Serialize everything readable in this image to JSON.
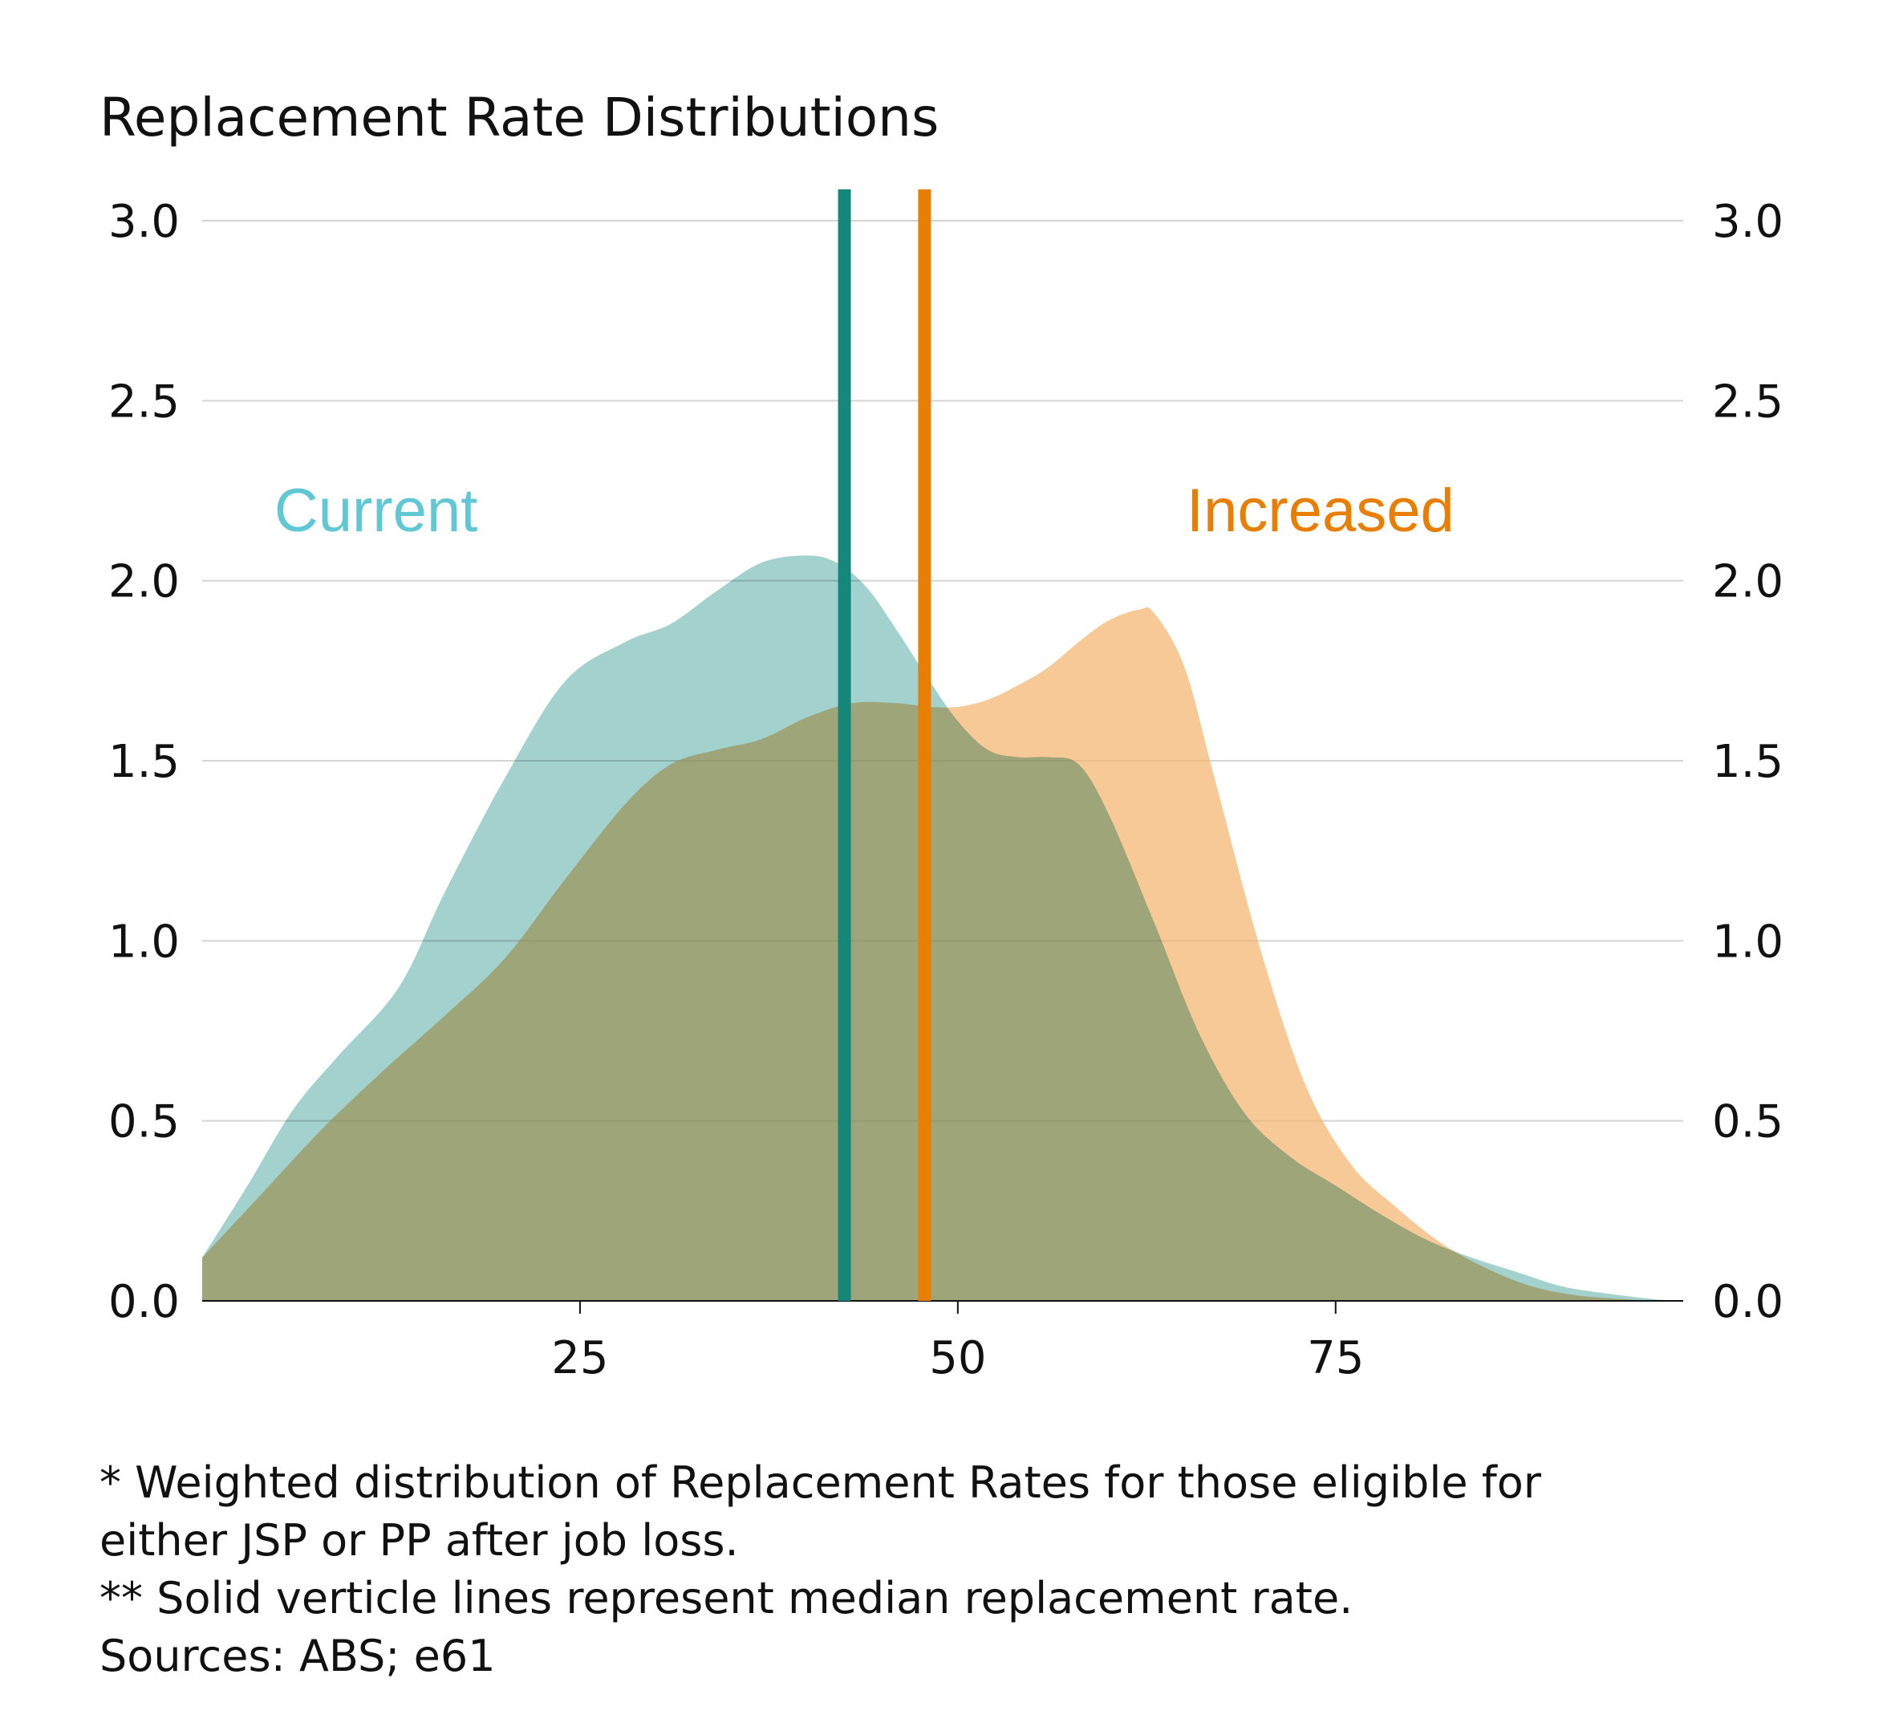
{
  "chart_data": {
    "type": "area",
    "title": "Replacement Rate Distributions",
    "xlabel": "",
    "ylabel": "",
    "xlim": [
      0,
      98
    ],
    "ylim": [
      0,
      3.0
    ],
    "xticks": [
      25,
      50,
      75
    ],
    "yticks": [
      0.0,
      0.5,
      1.0,
      1.5,
      2.0,
      2.5,
      3.0
    ],
    "ytick_labels": [
      "0.0",
      "0.5",
      "1.0",
      "1.5",
      "2.0",
      "2.5",
      "3.0"
    ],
    "grid": "horizontal",
    "series": [
      {
        "name": "Current",
        "color": "#5fc8d4",
        "fill": "#7fbfba",
        "x": [
          0,
          3,
          6,
          9,
          13,
          16,
          20,
          24,
          28,
          31,
          34,
          37,
          40,
          42,
          44,
          46,
          48,
          50,
          52,
          54,
          56,
          58,
          60,
          63,
          66,
          69,
          72,
          75,
          78,
          81,
          84,
          87,
          90,
          93,
          96,
          98
        ],
        "y": [
          0.12,
          0.32,
          0.53,
          0.68,
          0.87,
          1.13,
          1.45,
          1.72,
          1.83,
          1.88,
          1.97,
          2.05,
          2.07,
          2.05,
          1.98,
          1.86,
          1.73,
          1.61,
          1.53,
          1.51,
          1.51,
          1.49,
          1.35,
          1.05,
          0.74,
          0.52,
          0.4,
          0.32,
          0.24,
          0.17,
          0.12,
          0.08,
          0.04,
          0.02,
          0.005,
          0.0
        ],
        "median": 42.5,
        "median_color": "#14877a"
      },
      {
        "name": "Increased",
        "color": "#e87e04",
        "fill": "#f2b46e",
        "x": [
          0,
          4,
          8,
          12,
          16,
          20,
          24,
          28,
          31,
          34,
          37,
          40,
          43,
          46,
          48,
          50,
          52,
          54,
          56,
          58,
          60,
          62,
          63,
          65,
          67,
          70,
          73,
          76,
          79,
          82,
          85,
          88,
          91,
          94,
          96,
          98
        ],
        "y": [
          0.12,
          0.3,
          0.48,
          0.64,
          0.79,
          0.95,
          1.17,
          1.38,
          1.49,
          1.53,
          1.56,
          1.62,
          1.66,
          1.66,
          1.65,
          1.65,
          1.67,
          1.71,
          1.76,
          1.83,
          1.89,
          1.92,
          1.91,
          1.76,
          1.45,
          0.98,
          0.6,
          0.38,
          0.26,
          0.16,
          0.09,
          0.04,
          0.015,
          0.005,
          0.001,
          0.0
        ],
        "median": 47.8,
        "median_color": "#e87e04"
      }
    ],
    "annotations": [
      {
        "text": "Current",
        "x": 11.5,
        "y": 2.2,
        "color": "#5fc8d4"
      },
      {
        "text": "Increased",
        "x": 74,
        "y": 2.2,
        "color": "#e87e04"
      }
    ],
    "footnotes": [
      "* Weighted distribution of Replacement Rates for those eligible for",
      "either JSP or PP after job loss.",
      "** Solid verticle lines represent median replacement rate.",
      "Sources: ABS; e61"
    ]
  }
}
